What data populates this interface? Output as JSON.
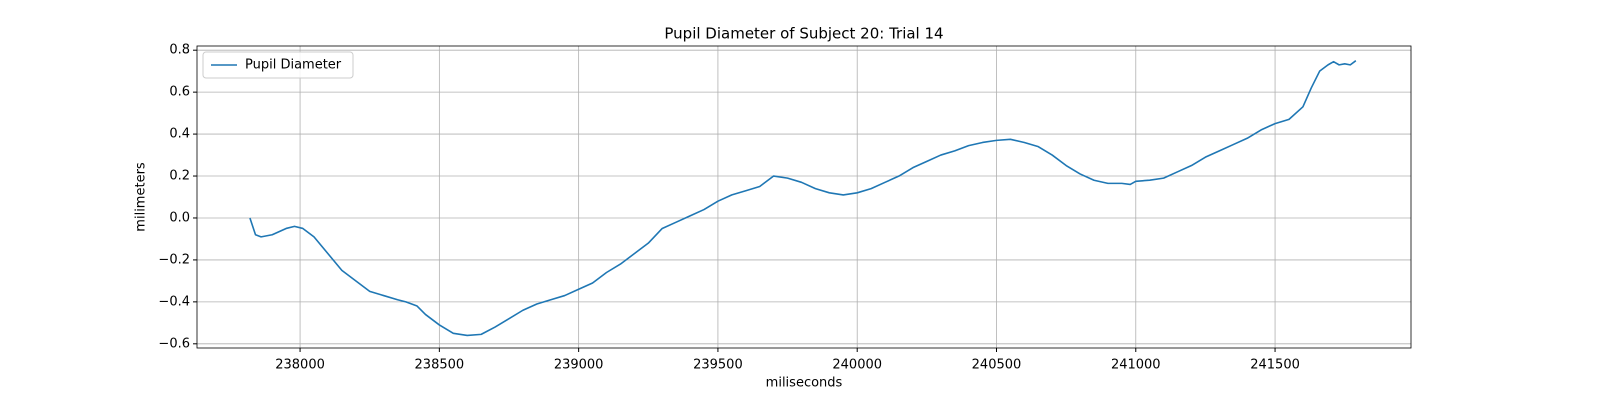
{
  "chart_data": {
    "type": "line",
    "title": "Pupil Diameter of Subject 20: Trial 14",
    "x_label": "miliseconds",
    "y_label": "milimeters",
    "x": [
      237820,
      237840,
      237860,
      237900,
      237950,
      237980,
      238010,
      238050,
      238100,
      238150,
      238200,
      238250,
      238300,
      238350,
      238380,
      238420,
      238450,
      238500,
      238550,
      238600,
      238650,
      238700,
      238750,
      238800,
      238850,
      238900,
      238950,
      239000,
      239050,
      239100,
      239150,
      239200,
      239250,
      239300,
      239350,
      239400,
      239450,
      239500,
      239550,
      239600,
      239650,
      239700,
      239750,
      239800,
      239850,
      239900,
      239950,
      240000,
      240050,
      240100,
      240150,
      240200,
      240250,
      240300,
      240350,
      240400,
      240450,
      240500,
      240550,
      240600,
      240650,
      240700,
      240750,
      240800,
      240850,
      240900,
      240950,
      240980,
      241000,
      241050,
      241100,
      241150,
      241200,
      241250,
      241300,
      241350,
      241400,
      241450,
      241500,
      241550,
      241600,
      241630,
      241660,
      241690,
      241710,
      241730,
      241750,
      241770,
      241790
    ],
    "series": [
      {
        "name": "Pupil Diameter",
        "color": "#1f77b4",
        "values": [
          0.0,
          -0.08,
          -0.09,
          -0.08,
          -0.05,
          -0.04,
          -0.05,
          -0.09,
          -0.17,
          -0.25,
          -0.3,
          -0.35,
          -0.37,
          -0.39,
          -0.4,
          -0.42,
          -0.46,
          -0.51,
          -0.55,
          -0.56,
          -0.555,
          -0.52,
          -0.48,
          -0.44,
          -0.41,
          -0.39,
          -0.37,
          -0.34,
          -0.31,
          -0.26,
          -0.22,
          -0.17,
          -0.12,
          -0.05,
          -0.02,
          0.01,
          0.04,
          0.08,
          0.11,
          0.13,
          0.15,
          0.2,
          0.19,
          0.17,
          0.14,
          0.12,
          0.11,
          0.12,
          0.14,
          0.17,
          0.2,
          0.24,
          0.27,
          0.3,
          0.32,
          0.345,
          0.36,
          0.37,
          0.375,
          0.36,
          0.34,
          0.3,
          0.25,
          0.21,
          0.18,
          0.165,
          0.165,
          0.16,
          0.175,
          0.18,
          0.19,
          0.22,
          0.25,
          0.29,
          0.32,
          0.35,
          0.38,
          0.42,
          0.45,
          0.47,
          0.53,
          0.62,
          0.7,
          0.73,
          0.745,
          0.73,
          0.735,
          0.73,
          0.75
        ]
      }
    ],
    "xlim": [
      237630,
      241988
    ],
    "ylim": [
      -0.62,
      0.82
    ],
    "xticks": [
      238000,
      238500,
      239000,
      239500,
      240000,
      240500,
      241000,
      241500
    ],
    "yticks": [
      {
        "value": -0.6,
        "label": "−0.6"
      },
      {
        "value": -0.4,
        "label": "−0.4"
      },
      {
        "value": -0.2,
        "label": "−0.2"
      },
      {
        "value": 0,
        "label": "0.0"
      },
      0.2,
      0.4,
      0.6,
      0.8
    ],
    "grid": true,
    "legend": "upper left"
  }
}
